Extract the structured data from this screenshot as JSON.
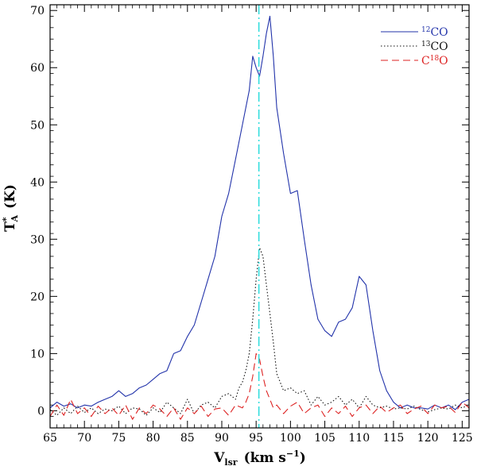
{
  "chart_data": {
    "type": "line",
    "title": "",
    "xlabel_main": "V",
    "xlabel_sub": "lsr",
    "xlabel_units": "(km s",
    "xlabel_exp": "−1",
    "xlabel_close": ")",
    "ylabel_main": "T",
    "ylabel_sup": "*",
    "ylabel_sub": "A",
    "ylabel_units": "(K)",
    "xlim": [
      65,
      126
    ],
    "ylim": [
      -3,
      71
    ],
    "xticks": [
      65,
      70,
      75,
      80,
      85,
      90,
      95,
      100,
      105,
      110,
      115,
      120,
      125
    ],
    "yticks": [
      0,
      10,
      20,
      30,
      40,
      50,
      60,
      70
    ],
    "vline_x": 95.4,
    "legend_position": "top-right",
    "series": [
      {
        "name_sup": "12",
        "name_main": "CO",
        "color": "#2233aa",
        "dash": "solid",
        "x": [
          65,
          66,
          67,
          68,
          69,
          70,
          71,
          72,
          73,
          74,
          75,
          76,
          77,
          78,
          79,
          80,
          81,
          82,
          83,
          84,
          85,
          86,
          87,
          88,
          89,
          90,
          91,
          92,
          93,
          94,
          94.5,
          95,
          95.5,
          96,
          96.5,
          97,
          97.5,
          98,
          99,
          100,
          101,
          102,
          103,
          104,
          105,
          106,
          107,
          108,
          109,
          110,
          111,
          112,
          113,
          114,
          115,
          116,
          117,
          118,
          119,
          120,
          121,
          122,
          123,
          124,
          125,
          126
        ],
        "y": [
          0.5,
          1.5,
          0.8,
          1.2,
          0.5,
          1.0,
          0.8,
          1.5,
          2.0,
          2.5,
          3.5,
          2.5,
          3.0,
          4.0,
          4.5,
          5.5,
          6.5,
          7.0,
          10.0,
          10.5,
          13.0,
          15.0,
          19.0,
          23.0,
          27.0,
          34.0,
          38.0,
          44.0,
          50.0,
          56.0,
          62.0,
          60.0,
          58.5,
          62.0,
          66.0,
          69.0,
          62.0,
          53.0,
          45.0,
          38.0,
          38.5,
          30.0,
          22.0,
          16.0,
          14.0,
          13.0,
          15.5,
          16.0,
          18.0,
          23.5,
          22.0,
          14.0,
          7.0,
          3.5,
          1.5,
          0.5,
          1.0,
          0.5,
          0.5,
          0.3,
          1.0,
          0.5,
          1.0,
          0.2,
          1.5,
          2.0
        ]
      },
      {
        "name_sup": "13",
        "name_main": "CO",
        "color": "#111111",
        "dash": "dotted",
        "x": [
          65,
          66,
          67,
          68,
          69,
          70,
          71,
          72,
          73,
          74,
          75,
          76,
          77,
          78,
          79,
          80,
          81,
          82,
          83,
          84,
          85,
          86,
          87,
          88,
          89,
          90,
          91,
          92,
          92.5,
          93,
          93.5,
          94,
          94.5,
          95,
          95.5,
          96,
          96.5,
          97,
          97.5,
          98,
          98.5,
          99,
          100,
          101,
          102,
          103,
          104,
          105,
          106,
          107,
          108,
          109,
          110,
          111,
          112,
          113,
          114,
          115,
          116,
          117,
          118,
          119,
          120,
          121,
          122,
          123,
          124,
          125,
          126
        ],
        "y": [
          0.2,
          -0.8,
          0.5,
          -0.5,
          0.8,
          -0.3,
          0.5,
          -0.5,
          0.3,
          0.0,
          0.8,
          -0.5,
          0.5,
          0.3,
          -0.8,
          0.5,
          -0.3,
          1.5,
          0.5,
          -0.5,
          2.0,
          -0.5,
          1.0,
          1.5,
          0.5,
          2.5,
          3.0,
          2.0,
          4.0,
          5.0,
          7.0,
          10.0,
          16.0,
          23.0,
          28.5,
          27.0,
          22.0,
          17.0,
          12.0,
          6.5,
          5.0,
          3.5,
          4.0,
          3.0,
          3.5,
          1.0,
          2.5,
          1.0,
          1.5,
          2.5,
          1.0,
          2.0,
          0.5,
          2.5,
          1.0,
          0.5,
          0.8,
          0.3,
          0.5,
          0.3,
          0.8,
          0.2,
          -0.2,
          0.2,
          0.5,
          0.3,
          1.0,
          0.5,
          1.0
        ]
      },
      {
        "name_sup": "18",
        "name_main_before": "C",
        "name_main": "O",
        "color": "#dd2222",
        "dash": "dashed",
        "x": [
          65,
          66,
          67,
          68,
          69,
          70,
          71,
          72,
          73,
          74,
          75,
          76,
          77,
          78,
          79,
          80,
          81,
          82,
          83,
          84,
          85,
          86,
          87,
          88,
          89,
          90,
          91,
          92,
          93,
          93.5,
          94,
          94.5,
          95,
          95.5,
          96,
          96.5,
          97,
          97.5,
          98,
          99,
          100,
          101,
          102,
          103,
          104,
          105,
          106,
          107,
          108,
          109,
          110,
          111,
          112,
          113,
          114,
          115,
          116,
          117,
          118,
          119,
          120,
          121,
          122,
          123,
          124,
          125,
          126
        ],
        "y": [
          -1.0,
          1.0,
          -0.8,
          2.0,
          -0.5,
          0.5,
          -1.0,
          0.8,
          -0.5,
          0.5,
          -0.8,
          1.0,
          -1.5,
          0.5,
          -0.5,
          1.0,
          0.3,
          -1.0,
          0.5,
          -1.5,
          0.5,
          -0.5,
          0.8,
          -1.0,
          0.3,
          0.5,
          -0.8,
          1.0,
          0.5,
          1.5,
          3.0,
          6.0,
          10.0,
          9.0,
          6.0,
          3.5,
          2.0,
          0.5,
          1.0,
          -0.5,
          0.8,
          1.5,
          -0.5,
          0.5,
          1.0,
          -1.0,
          0.5,
          -0.5,
          0.8,
          -1.0,
          0.5,
          1.0,
          -0.5,
          0.8,
          -0.3,
          0.5,
          1.0,
          -0.5,
          0.3,
          0.8,
          -0.5,
          1.0,
          0.5,
          0.8,
          -0.3,
          1.5,
          0.5
        ]
      }
    ]
  }
}
